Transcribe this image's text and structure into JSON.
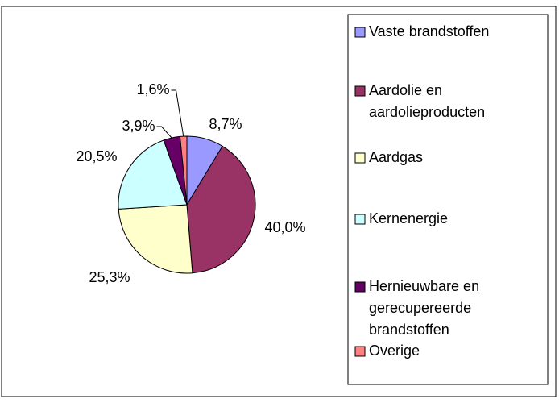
{
  "chart_data": {
    "type": "pie",
    "categories": [
      "Vaste brandstoffen",
      "Aardolie en aardolieproducten",
      "Aardgas",
      "Kernenergie",
      "Hernieuwbare en gerecupereerde brandstoffen",
      "Overige"
    ],
    "values": [
      8.7,
      40.0,
      25.3,
      20.5,
      3.9,
      1.6
    ],
    "value_labels": [
      "8,7%",
      "40,0%",
      "25,3%",
      "20,5%",
      "3,9%",
      "1,6%"
    ],
    "colors": [
      "#9999FF",
      "#993366",
      "#FFFFCC",
      "#CCFFFF",
      "#660066",
      "#FF8080"
    ],
    "legend": "right"
  }
}
